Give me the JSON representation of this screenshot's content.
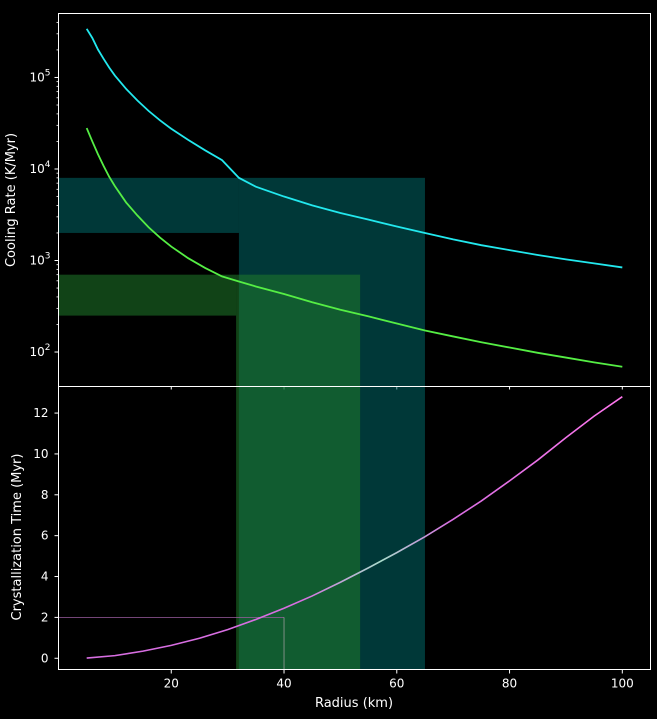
{
  "chart_data": [
    {
      "type": "line",
      "panel": "top",
      "xlabel": "",
      "ylabel": "Cooling Rate (K/Myr)",
      "yscale": "log",
      "xlim": [
        0,
        105
      ],
      "ylim": [
        42,
        500000
      ],
      "grid": false,
      "colors": {
        "background": "#000000",
        "axes": "#ffffff"
      },
      "y_ticks": [
        {
          "base": "10",
          "exp": "2",
          "value": 100
        },
        {
          "base": "10",
          "exp": "3",
          "value": 1000
        },
        {
          "base": "10",
          "exp": "4",
          "value": 10000
        },
        {
          "base": "10",
          "exp": "5",
          "value": 100000
        }
      ],
      "series": [
        {
          "color": "#22e8ee",
          "x": [
            5,
            6,
            7,
            8,
            9,
            10,
            12,
            14,
            16,
            18,
            20,
            23,
            26,
            29,
            32,
            35,
            40,
            45,
            50,
            55,
            60,
            65,
            70,
            75,
            80,
            85,
            90,
            95,
            100
          ],
          "y": [
            340000,
            270000,
            202000,
            160000,
            128000,
            105000,
            75000,
            56000,
            43000,
            34000,
            27500,
            20800,
            16000,
            12500,
            8000,
            6400,
            5000,
            4000,
            3300,
            2800,
            2350,
            2000,
            1700,
            1470,
            1300,
            1150,
            1030,
            930,
            840
          ]
        },
        {
          "color": "#55ee44",
          "x": [
            5,
            6,
            7,
            8,
            9,
            10,
            12,
            14,
            16,
            18,
            20,
            23,
            26,
            29,
            32,
            35,
            40,
            45,
            50,
            55,
            60,
            65,
            70,
            75,
            80,
            85,
            90,
            95,
            100
          ],
          "y": [
            28000,
            20000,
            14500,
            10800,
            8200,
            6500,
            4300,
            3100,
            2300,
            1780,
            1420,
            1060,
            830,
            670,
            590,
            520,
            430,
            350,
            290,
            245,
            205,
            172,
            148,
            128,
            112,
            98,
            87,
            77,
            69
          ]
        }
      ],
      "bands": [
        {
          "color": "#006666",
          "x0": 0,
          "x1": 32,
          "y0": 2000,
          "y1": 8000
        },
        {
          "color": "#006666",
          "x0": 32,
          "x1": 65,
          "y0": 42,
          "y1": 8000
        },
        {
          "color": "#1f7a2a",
          "x0": 0,
          "x1": 31.5,
          "y0": 250,
          "y1": 700
        },
        {
          "color": "#1f7a2a",
          "x0": 31.5,
          "x1": 53.5,
          "y0": 42,
          "y1": 700
        }
      ]
    },
    {
      "type": "line",
      "panel": "bottom",
      "xlabel": "Radius (km)",
      "ylabel": "Crystallization Time (Myr)",
      "xlim": [
        0,
        105
      ],
      "ylim": [
        -0.55,
        13.3
      ],
      "grid": false,
      "x_ticks": [
        "20",
        "40",
        "60",
        "80",
        "100"
      ],
      "y_ticks": [
        "0",
        "2",
        "4",
        "6",
        "8",
        "10",
        "12"
      ],
      "series": [
        {
          "color_start": "#d86ee2",
          "color_end": "#ff77ee",
          "color_mid": "#aaddcc",
          "x": [
            5,
            10,
            15,
            20,
            25,
            30,
            35,
            40,
            45,
            50,
            55,
            60,
            65,
            70,
            75,
            80,
            85,
            90,
            95,
            100
          ],
          "y": [
            0.01,
            0.13,
            0.35,
            0.63,
            0.98,
            1.4,
            1.9,
            2.45,
            3.05,
            3.72,
            4.43,
            5.17,
            5.95,
            6.8,
            7.7,
            8.68,
            9.7,
            10.8,
            11.85,
            12.8
          ]
        }
      ],
      "bands": [
        {
          "color": "#006666",
          "x0": 32,
          "x1": 65
        },
        {
          "color": "#1f7a2a",
          "x0": 31.5,
          "x1": 53.5
        }
      ],
      "reference": {
        "x": 40,
        "y": 2,
        "line_color": "#9a5ca0"
      }
    }
  ]
}
